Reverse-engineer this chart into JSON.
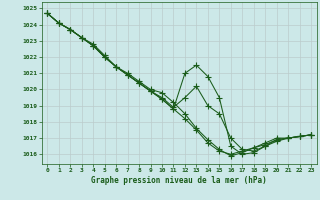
{
  "title": "Graphe pression niveau de la mer (hPa)",
  "background_color": "#cce8e8",
  "grid_color": "#bbcccc",
  "line_color": "#1a5c1a",
  "marker_color": "#1a5c1a",
  "xlim": [
    -0.5,
    23.5
  ],
  "ylim": [
    1015.4,
    1025.4
  ],
  "xticks": [
    0,
    1,
    2,
    3,
    4,
    5,
    6,
    7,
    8,
    9,
    10,
    11,
    12,
    13,
    14,
    15,
    16,
    17,
    18,
    19,
    20,
    21,
    22,
    23
  ],
  "yticks": [
    1016,
    1017,
    1018,
    1019,
    1020,
    1021,
    1022,
    1023,
    1024,
    1025
  ],
  "series": [
    [
      1024.7,
      1024.1,
      1023.7,
      1023.2,
      1022.8,
      1022.1,
      1021.4,
      1021.0,
      1020.5,
      1020.0,
      1019.8,
      1019.2,
      1018.5,
      1017.6,
      1016.9,
      1016.3,
      1015.9,
      1016.1,
      1016.4,
      1016.7,
      1017.0,
      1017.0,
      1017.1,
      1017.2
    ],
    [
      1024.7,
      1024.1,
      1023.7,
      1023.2,
      1022.7,
      1022.0,
      1021.4,
      1020.9,
      1020.4,
      1019.9,
      1019.5,
      1018.9,
      1019.5,
      1020.2,
      1019.0,
      1018.5,
      1017.0,
      1016.3,
      1016.2,
      1016.5,
      1016.8,
      1017.0,
      1017.1,
      1017.2
    ],
    [
      1024.7,
      1024.1,
      1023.7,
      1023.2,
      1022.7,
      1022.0,
      1021.4,
      1020.9,
      1020.4,
      1019.9,
      1019.4,
      1018.8,
      1018.2,
      1017.5,
      1016.7,
      1016.2,
      1016.0,
      1016.2,
      1016.4,
      1016.6,
      1016.9,
      1017.0,
      1017.1,
      1017.2
    ],
    [
      1024.7,
      1024.1,
      1023.7,
      1023.2,
      1022.7,
      1022.0,
      1021.4,
      1020.9,
      1020.4,
      1019.9,
      1019.4,
      1018.8,
      1021.0,
      1021.5,
      1020.8,
      1019.5,
      1016.5,
      1016.0,
      1016.1,
      1016.5,
      1016.9,
      1017.0,
      1017.1,
      1017.2
    ]
  ]
}
